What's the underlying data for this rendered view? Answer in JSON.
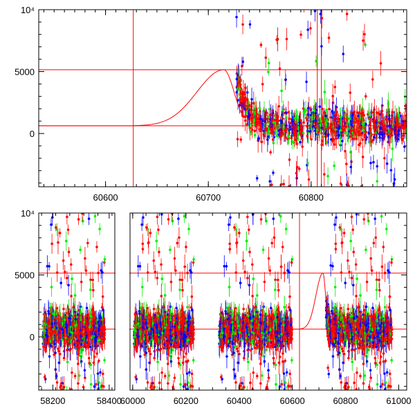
{
  "chart_data": [
    {
      "type": "scatter",
      "name": "zoomed-light-curve",
      "xlim": [
        60535,
        60893
      ],
      "ylim": [
        -4300,
        10000
      ],
      "x_ticks": [
        60600,
        60700,
        60800
      ],
      "y_ticks": [
        0,
        5000,
        10000
      ],
      "y_tick_labels": [
        "0",
        "5000",
        "10⁴"
      ],
      "reference_lines": {
        "horizontal": [
          5150,
          620
        ],
        "vertical": [
          60627,
          60806,
          60810
        ]
      },
      "model_curve": {
        "baseline": 620,
        "peak": 5150,
        "peak_x": 60715,
        "rise_start": 60627,
        "cutoff_x": 60735
      },
      "series": [
        {
          "name": "green",
          "color": "#00ee00"
        },
        {
          "name": "blue",
          "color": "#0000ff"
        },
        {
          "name": "red",
          "color": "#ff0000"
        }
      ],
      "data_span": [
        60727,
        60893
      ]
    },
    {
      "type": "scatter",
      "name": "full-light-curve",
      "segments": [
        {
          "xlim": [
            58150,
            58420
          ],
          "x_ticks": [
            58200,
            58400
          ],
          "data_span": [
            58165,
            58385
          ]
        },
        {
          "xlim": [
            59990,
            61030
          ],
          "x_ticks": [
            60000,
            60200,
            60400,
            60600,
            60800,
            61000
          ],
          "data_span": [
            60005,
            60230
          ]
        }
      ],
      "extra_data_spans": [
        [
          60325,
          60600
        ],
        [
          60727,
          60975
        ]
      ],
      "ylim": [
        -4300,
        10000
      ],
      "y_ticks": [
        0,
        5000,
        10000
      ],
      "y_tick_labels": [
        "0",
        "5000",
        "10⁴"
      ],
      "reference_lines": {
        "horizontal": [
          5150,
          620
        ],
        "vertical": [
          60627
        ]
      },
      "model_curve": {
        "baseline": 620,
        "peak": 5150,
        "peak_x": 60715,
        "rise_start": 60627,
        "cutoff_x": 60735
      },
      "series": [
        {
          "name": "green",
          "color": "#00ee00"
        },
        {
          "name": "blue",
          "color": "#0000ff"
        },
        {
          "name": "red",
          "color": "#ff0000"
        }
      ]
    }
  ]
}
